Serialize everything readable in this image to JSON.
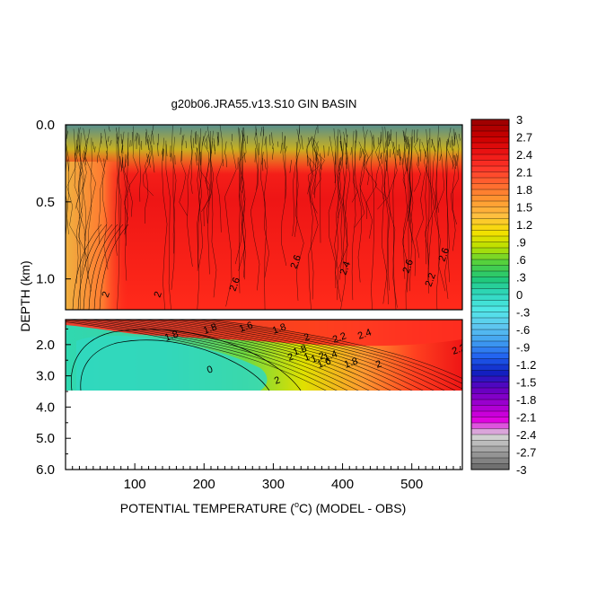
{
  "chart_data": {
    "type": "heatmap",
    "title": "g20b06.JRA55.v13.S10 GIN BASIN",
    "xlabel": "POTENTIAL TEMPERATURE (",
    "xlabel_unit_sup": "o",
    "xlabel_suffix": "C) (MODEL - OBS)",
    "ylabel": "DEPTH (km)",
    "xlim": [
      0,
      573
    ],
    "x_ticks": [
      "100",
      "200",
      "300",
      "400",
      "500"
    ],
    "x_tick_values": [
      100,
      200,
      300,
      400,
      500
    ],
    "upper_panel": {
      "ylim": [
        0.0,
        1.2
      ],
      "y_ticks": [
        "0.0",
        "0.5",
        "1.0"
      ],
      "y_tick_values": [
        0.0,
        0.5,
        1.0
      ]
    },
    "lower_panel": {
      "ylim": [
        1.2,
        6.0
      ],
      "y_ticks": [
        "2.0",
        "3.0",
        "4.0",
        "5.0",
        "6.0"
      ],
      "y_tick_values": [
        2.0,
        3.0,
        4.0,
        5.0,
        6.0
      ],
      "data_bottom_km": 3.35
    },
    "contour_labels_upper": [
      "2",
      "2",
      "2.6",
      "2.6",
      "2.4",
      "2.6",
      "2.6",
      "2.2"
    ],
    "contour_labels_lower": [
      "1.8",
      "1.8",
      "1.6",
      "1.8",
      "2",
      "2.2",
      "2.4",
      "2",
      "1.8",
      "1.6",
      "1.8",
      "2",
      "0",
      "2",
      "1",
      "1.4",
      "1.2",
      "2.2"
    ],
    "colorbar": {
      "min": -3.0,
      "max": 3.0,
      "labels": [
        "3",
        "2.7",
        "2.4",
        "2.1",
        "1.8",
        "1.5",
        "1.2",
        ".9",
        ".6",
        ".3",
        "0",
        "-.3",
        "-.6",
        "-.9",
        "-1.2",
        "-1.5",
        "-1.8",
        "-2.1",
        "-2.4",
        "-2.7",
        "-3"
      ],
      "label_values": [
        3.0,
        2.7,
        2.4,
        2.1,
        1.8,
        1.5,
        1.2,
        0.9,
        0.6,
        0.3,
        0.0,
        -0.3,
        -0.6,
        -0.9,
        -1.2,
        -1.5,
        -1.8,
        -2.1,
        -2.4,
        -2.7,
        -3.0
      ],
      "colors_top_to_bottom": [
        "#a00000",
        "#cc0000",
        "#ee1515",
        "#ff3a2a",
        "#ff6a30",
        "#ff9930",
        "#ffc040",
        "#f5e000",
        "#b8e000",
        "#50d040",
        "#20c878",
        "#30d8c0",
        "#50e8e8",
        "#60c8f0",
        "#40a0f0",
        "#2060f0",
        "#1020c0",
        "#6000c0",
        "#a000d0",
        "#e000e0",
        "#d8d8d8",
        "#a0a0a0",
        "#707070"
      ]
    }
  }
}
